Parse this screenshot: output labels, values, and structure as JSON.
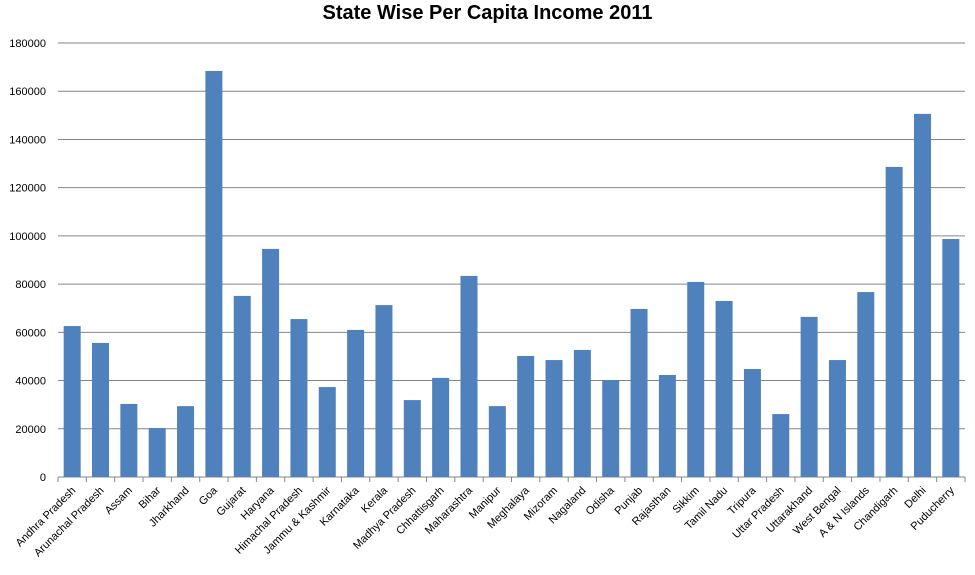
{
  "chart_data": {
    "type": "bar",
    "title": "State Wise Per Capita Income 2011",
    "xlabel": "",
    "ylabel": "",
    "ylim": [
      0,
      180000
    ],
    "yticks": [
      "0",
      "20000",
      "40000",
      "60000",
      "80000",
      "100000",
      "120000",
      "140000",
      "160000",
      "180000"
    ],
    "grid": true,
    "legend": "none",
    "bar_color": "#4f81bd",
    "categories": [
      "Andhra Pradesh",
      "Arunachal Pradesh",
      "Assam",
      "Bihar",
      "Jharkhand",
      "Goa",
      "Gujarat",
      "Haryana",
      "Himachal Pradesh",
      "Jammu & Kashmir",
      "Karnataka",
      "Kerala",
      "Madhya Pradesh",
      "Chhattisgarh",
      "Maharashtra",
      "Manipur",
      "Meghalaya",
      "Mizoram",
      "Nagaland",
      "Odisha",
      "Punjab",
      "Rajasthan",
      "Sikkim",
      "Tamil Nadu",
      "Tripura",
      "Uttar Pradesh",
      "Uttarakhand",
      "West Bengal",
      "A & N Islands",
      "Chandigarh",
      "Delhi",
      "Puducherry"
    ],
    "values": [
      62600,
      55600,
      30300,
      20300,
      29400,
      168400,
      75100,
      94600,
      65500,
      37300,
      61000,
      71300,
      31900,
      41100,
      83400,
      29400,
      50200,
      48500,
      52700,
      40200,
      69700,
      42300,
      80900,
      73000,
      44800,
      26100,
      66400,
      48500,
      76700,
      128600,
      150600,
      98700
    ]
  }
}
